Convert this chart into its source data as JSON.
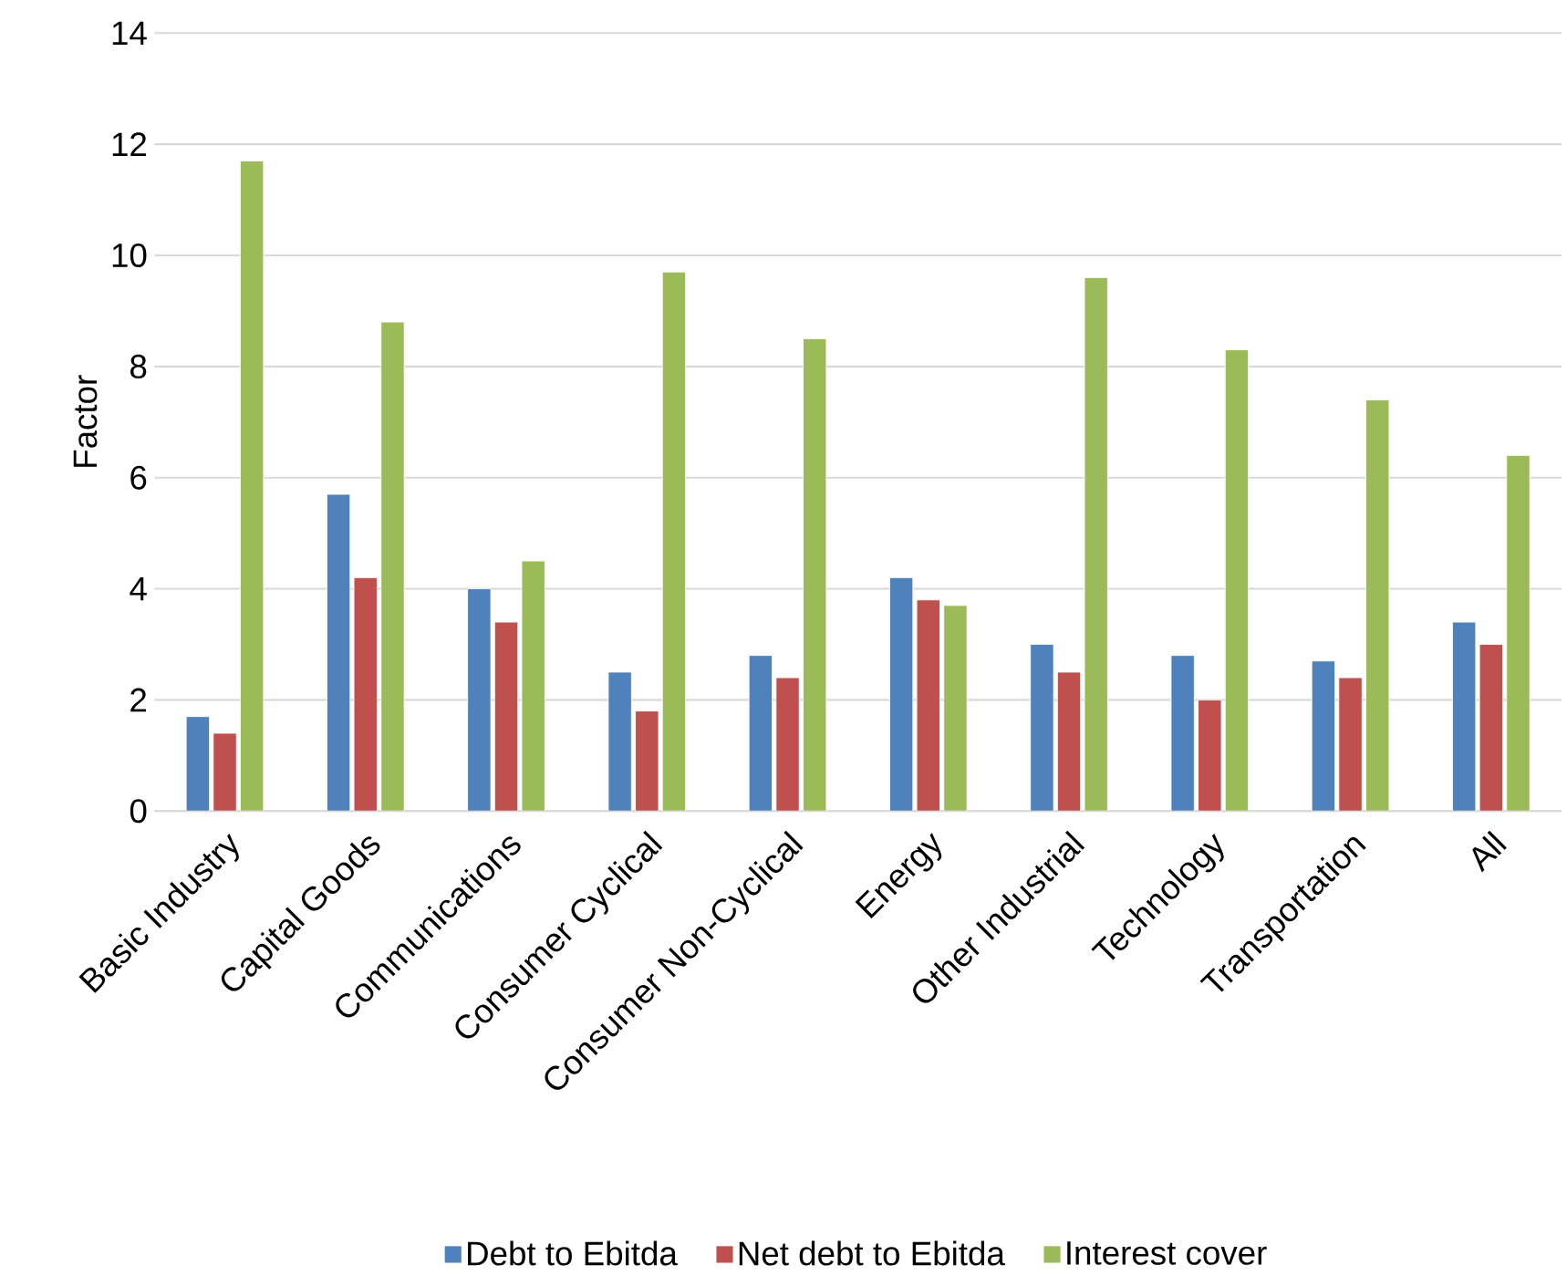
{
  "chart_data": {
    "type": "bar",
    "ylabel": "Factor",
    "categories": [
      "Basic Industry",
      "Capital Goods",
      "Communications",
      "Consumer Cyclical",
      "Consumer Non-Cyclical",
      "Energy",
      "Other Industrial",
      "Technology",
      "Transportation",
      "All"
    ],
    "series": [
      {
        "name": "Debt to Ebitda",
        "color": "#4f81bd",
        "values": [
          1.7,
          5.7,
          4.0,
          2.5,
          2.8,
          4.2,
          3.0,
          2.8,
          2.7,
          3.4
        ]
      },
      {
        "name": "Net debt to Ebitda",
        "color": "#c0504d",
        "values": [
          1.4,
          4.2,
          3.4,
          1.8,
          2.4,
          3.8,
          2.5,
          2.0,
          2.4,
          3.0
        ]
      },
      {
        "name": "Interest cover",
        "color": "#9bbb59",
        "values": [
          11.7,
          8.8,
          4.5,
          9.7,
          8.5,
          3.7,
          9.6,
          8.3,
          7.4,
          6.4
        ]
      }
    ],
    "ylim": [
      0,
      14
    ],
    "yticks": [
      0,
      2,
      4,
      6,
      8,
      10,
      12,
      14
    ],
    "grid": "y",
    "legend": "bottom"
  }
}
